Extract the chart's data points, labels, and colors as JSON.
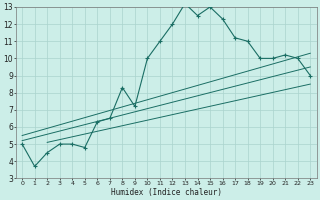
{
  "title": "",
  "xlabel": "Humidex (Indice chaleur)",
  "bg_color": "#cceee8",
  "grid_color": "#aad4ce",
  "line_color": "#1a6e64",
  "xlim": [
    -0.5,
    23.5
  ],
  "ylim": [
    3,
    13
  ],
  "xticks": [
    0,
    1,
    2,
    3,
    4,
    5,
    6,
    7,
    8,
    9,
    10,
    11,
    12,
    13,
    14,
    15,
    16,
    17,
    18,
    19,
    20,
    21,
    22,
    23
  ],
  "yticks": [
    3,
    4,
    5,
    6,
    7,
    8,
    9,
    10,
    11,
    12,
    13
  ],
  "main_x": [
    0,
    1,
    2,
    3,
    4,
    5,
    6,
    7,
    8,
    9,
    10,
    11,
    12,
    13,
    14,
    15,
    16,
    17,
    18,
    19,
    20,
    21,
    22,
    23
  ],
  "main_y": [
    5.0,
    3.7,
    4.5,
    5.0,
    5.0,
    4.8,
    6.3,
    6.5,
    8.3,
    7.2,
    10.0,
    11.0,
    12.0,
    13.2,
    12.5,
    13.0,
    12.3,
    11.2,
    11.0,
    10.0,
    10.0,
    10.2,
    10.0,
    9.0
  ],
  "ref_line1_x": [
    0,
    23
  ],
  "ref_line1_y": [
    5.2,
    9.5
  ],
  "ref_line2_x": [
    0,
    23
  ],
  "ref_line2_y": [
    5.5,
    10.3
  ],
  "ref_line3_x": [
    2,
    23
  ],
  "ref_line3_y": [
    5.1,
    8.5
  ],
  "marker_x": [
    0,
    1,
    2,
    3,
    4,
    5,
    6,
    7,
    8,
    9,
    10,
    11,
    12,
    13,
    14,
    15,
    16,
    17,
    18,
    19,
    20,
    21,
    22,
    23
  ],
  "marker_y": [
    5.0,
    3.7,
    4.5,
    5.0,
    5.0,
    4.8,
    6.3,
    6.5,
    8.3,
    7.2,
    10.0,
    11.0,
    12.0,
    13.2,
    12.5,
    13.0,
    12.3,
    11.2,
    11.0,
    10.0,
    10.0,
    10.2,
    10.0,
    9.0
  ],
  "xlabel_fontsize": 5.5,
  "tick_fontsize": 4.5,
  "ytick_fontsize": 5.5
}
